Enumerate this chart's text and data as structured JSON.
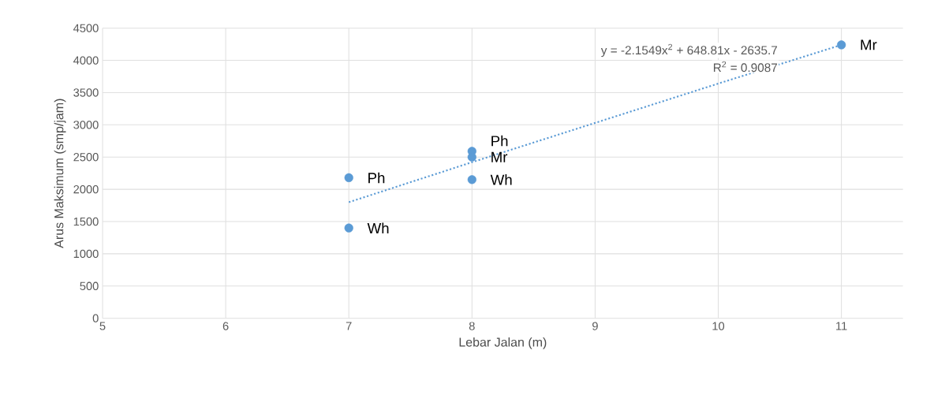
{
  "chart_data": {
    "type": "scatter",
    "xlabel": "Lebar Jalan (m)",
    "ylabel": "Arus Maksimum (smp/jam)",
    "xlim": [
      5,
      11.5
    ],
    "xticks": [
      5,
      6,
      7,
      8,
      9,
      10,
      11
    ],
    "ylim": [
      0,
      4500
    ],
    "yticks": [
      0,
      500,
      1000,
      1500,
      2000,
      2500,
      3000,
      3500,
      4000,
      4500
    ],
    "grid": true,
    "series": [
      {
        "color": "#5b9bd5",
        "marker": "circle",
        "x": [
          7,
          7,
          8,
          8,
          8,
          11
        ],
        "values": [
          2180,
          1400,
          2590,
          2500,
          2150,
          4240
        ]
      },
      {
        "type": "line",
        "color": "#5b9bd5",
        "marker": "none",
        "line_style": "dotted",
        "x": [
          7,
          8,
          9,
          10,
          11
        ],
        "values": [
          1800,
          2420,
          3030,
          3640,
          4240
        ]
      }
    ],
    "annotations": [
      "y = -2.1549x$^{2}$ + 648.81x - 2635.7",
      "R$^{2}$ = 0.9087",
      {
        "text": "Ph",
        "x": 7,
        "y": 2180
      },
      {
        "text": "Wh",
        "x": 7,
        "y": 1400
      },
      {
        "text": "Ph",
        "x": 8,
        "y": 2590
      },
      {
        "text": "Mr",
        "x": 8,
        "y": 2500
      },
      {
        "text": "Wh",
        "x": 8,
        "y": 2150
      },
      {
        "text": "Mr",
        "x": 11,
        "y": 4240
      }
    ]
  }
}
